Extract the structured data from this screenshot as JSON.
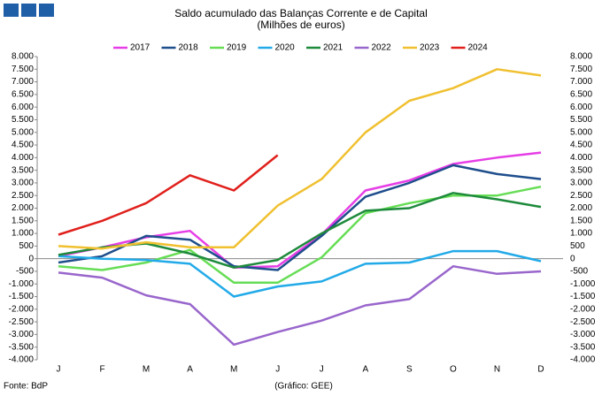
{
  "chart_data": {
    "type": "line",
    "title": "Saldo acumulado das Balanças Corrente e de Capital",
    "subtitle": "(Milhões de euros)",
    "source": "Fonte: BdP",
    "credit": "(Gráfico: GEE)",
    "categories": [
      "J",
      "F",
      "M",
      "A",
      "M",
      "J",
      "J",
      "A",
      "S",
      "O",
      "N",
      "D"
    ],
    "series": [
      {
        "name": "2017",
        "color": "#e63ee6",
        "values": [
          100,
          450,
          850,
          1100,
          -350,
          -300,
          950,
          2700,
          3100,
          3750,
          4000,
          4200
        ]
      },
      {
        "name": "2018",
        "color": "#1f4e8c",
        "values": [
          -150,
          100,
          900,
          750,
          -300,
          -450,
          900,
          2450,
          3000,
          3700,
          3350,
          3150
        ]
      },
      {
        "name": "2019",
        "color": "#66dd55",
        "values": [
          -300,
          -450,
          -150,
          350,
          -950,
          -950,
          50,
          1800,
          2200,
          2500,
          2500,
          2850
        ]
      },
      {
        "name": "2020",
        "color": "#22aae8",
        "values": [
          100,
          0,
          -50,
          -200,
          -1500,
          -1100,
          -900,
          -200,
          -150,
          300,
          300,
          -100
        ]
      },
      {
        "name": "2021",
        "color": "#1e8a3c",
        "values": [
          150,
          450,
          600,
          200,
          -350,
          -50,
          1000,
          1900,
          2000,
          2600,
          2350,
          2050
        ]
      },
      {
        "name": "2022",
        "color": "#9966cc",
        "values": [
          -550,
          -750,
          -1450,
          -1800,
          -3400,
          -2900,
          -2450,
          -1850,
          -1600,
          -300,
          -600,
          -500
        ]
      },
      {
        "name": "2023",
        "color": "#f0c030",
        "values": [
          500,
          400,
          650,
          450,
          450,
          2100,
          3150,
          5000,
          6250,
          6750,
          7500,
          7250
        ]
      },
      {
        "name": "2024",
        "color": "#e0201c",
        "values": [
          950,
          1500,
          2200,
          3300,
          2700,
          4100,
          null,
          null,
          null,
          null,
          null,
          null
        ]
      }
    ],
    "ylim": [
      -4000,
      8000
    ],
    "yticks": [
      {
        "value": 8000,
        "label": "8.000"
      },
      {
        "value": 7500,
        "label": "7.500"
      },
      {
        "value": 7000,
        "label": "7.000"
      },
      {
        "value": 6500,
        "label": "6.500"
      },
      {
        "value": 6000,
        "label": "6.000"
      },
      {
        "value": 5500,
        "label": "5.500"
      },
      {
        "value": 5000,
        "label": "5.000"
      },
      {
        "value": 4500,
        "label": "4.500"
      },
      {
        "value": 4000,
        "label": "4.000"
      },
      {
        "value": 3500,
        "label": "3.500"
      },
      {
        "value": 3000,
        "label": "3.000"
      },
      {
        "value": 2500,
        "label": "2.500"
      },
      {
        "value": 2000,
        "label": "2.000"
      },
      {
        "value": 1500,
        "label": "1.500"
      },
      {
        "value": 1000,
        "label": "1.000"
      },
      500,
      0,
      -500,
      {
        "value": -1000,
        "label": "-1.000"
      },
      {
        "value": -1500,
        "label": "-1.500"
      },
      {
        "value": -2000,
        "label": "-2.000"
      },
      {
        "value": -2500,
        "label": "-2.500"
      },
      {
        "value": -3000,
        "label": "-3.000"
      },
      {
        "value": -3500,
        "label": "-3.500"
      },
      {
        "value": -4000,
        "label": "-4.000"
      }
    ],
    "grid": false
  }
}
